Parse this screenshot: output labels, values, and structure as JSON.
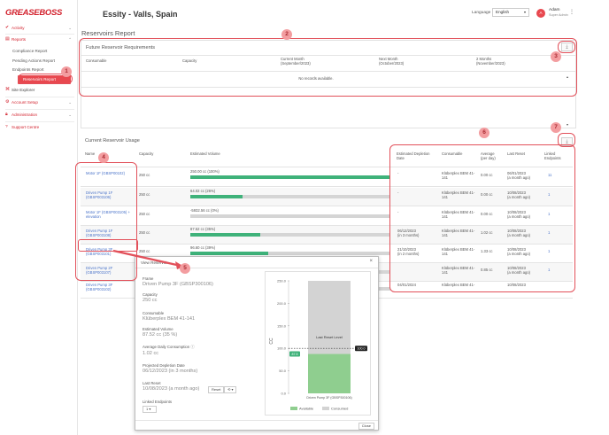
{
  "brand": {
    "logo_text": "GREASEBOSS"
  },
  "sidebar": {
    "activity": "Activity",
    "reports": "Reports",
    "compliance_report": "Compliance Report",
    "pending_actions_report": "Pending Actions Report",
    "endpoints_report": "Endpoints Report",
    "reservoirs_report": "Reservoirs Report",
    "site_explorer": "Site Explorer",
    "account_setup": "Account Setup",
    "administration": "Administration",
    "support_centre": "Support Centre"
  },
  "header": {
    "company": "Essity - Valls, Spain",
    "language_label": "Language",
    "language_value": "English",
    "avatar_initial": "A",
    "user_name": "Adam",
    "user_role": "Super Admin"
  },
  "page_title": "Reservoirs Report",
  "future": {
    "title": "Future Reservoir Requirements",
    "columns": [
      "Consumable",
      "Capacity",
      "Current Month",
      "Next Month",
      "2 Months"
    ],
    "subcolumns": [
      "(September/2023)",
      "(October/2023)",
      "(November/2023)"
    ],
    "empty": "No records available."
  },
  "current": {
    "title": "Current Reservoir Usage",
    "columns": [
      "Name",
      "Capacity",
      "Estimated Volume",
      "Estimated Depletion Date",
      "Consumable",
      "Average (per day)",
      "Last Reset",
      "Linked Endpoints"
    ],
    "rows": [
      {
        "name": "Motor 1F (GBSP00102)",
        "capacity": "250 cc",
        "volume": "250.00 cc (100%)",
        "fill": 1.0,
        "depletion": "-",
        "consumable": "Klüberplex BEM 41-141",
        "avg": "0.00 cc",
        "reset": "06/01/2023",
        "reset_ago": "(a month ago)",
        "endpoints": "11"
      },
      {
        "name": "Driven Pump 1F (GBSP003106)",
        "capacity": "250 cc",
        "volume": "64.02 cc (26%)",
        "fill": 0.26,
        "depletion": "-",
        "consumable": "Klüberplex BEM 41-141",
        "avg": "0.00 cc",
        "reset": "10/08/2023",
        "reset_ago": "(a month ago)",
        "endpoints": "1"
      },
      {
        "name": "Motor 1F (GBSP003105) + elevation",
        "capacity": "250 cc",
        "volume": "-5932.56 cc (0%)",
        "fill": 0.0,
        "depletion": "-",
        "consumable": "Klüberplex BEM 41-141",
        "avg": "0.00 cc",
        "reset": "10/08/2023",
        "reset_ago": "(a month ago)",
        "endpoints": "1"
      },
      {
        "name": "Driven Pump 1F (GBSP003108)",
        "capacity": "250 cc",
        "volume": "87.52 cc (35%)",
        "fill": 0.35,
        "depletion": "06/12/2023",
        "depletion_rel": "(in 3 months)",
        "consumable": "Klüberplex BEM 41-141",
        "avg": "1.02 cc",
        "reset": "10/08/2023",
        "reset_ago": "(a month ago)",
        "endpoints": "1"
      },
      {
        "name": "Driven Pump 3F (GBSP003101)",
        "capacity": "250 cc",
        "volume": "96.60 cc (39%)",
        "fill": 0.39,
        "depletion": "21/10/2023",
        "depletion_rel": "(in 2 months)",
        "consumable": "Klüberplex BEM 41-141",
        "avg": "1.33 cc",
        "reset": "10/08/2023",
        "reset_ago": "(a month ago)",
        "endpoints": "1"
      },
      {
        "name": "Driven Pump 2F (GBSP003107)",
        "capacity": "250 cc",
        "volume": "",
        "fill": 0.0,
        "depletion": "",
        "consumable": "Klüberplex BEM 41-141",
        "avg": "0.85 cc",
        "reset": "10/08/2023",
        "reset_ago": "(a month ago)",
        "endpoints": "1"
      },
      {
        "name": "Driven Pump 3F (GBSP003102)",
        "capacity": "250 cc",
        "volume": "",
        "fill": 0.0,
        "depletion": "04/01/2024",
        "consumable": "Klüberplex BEM 41-",
        "avg": "",
        "reset": "10/08/2023",
        "reset_ago": "",
        "endpoints": ""
      }
    ]
  },
  "modal": {
    "title": "View Reservoir",
    "frame_label": "Frame",
    "frame_value": "Driven Pump 3F (GBSP300106)",
    "capacity_label": "Capacity",
    "capacity_value": "250 cc",
    "consumable_label": "Consumable",
    "consumable_value": "Klüberplex BEM 41-141",
    "volume_label": "Estimated Volume",
    "volume_value": "87.52 cc (35 %)",
    "avg_label": "Average Daily Consumption",
    "avg_value": "1.02 cc",
    "depletion_label": "Projected Depletion Date",
    "depletion_value": "06/12/2023 (in 3 months)",
    "reset_label": "Last Reset",
    "reset_value": "10/08/2023 (a month ago)",
    "reset_button": "Reset",
    "linked_label": "Linked Endpoints",
    "linked_value": "1",
    "close_button": "Close"
  },
  "markers": [
    "1",
    "2",
    "3",
    "4",
    "5",
    "6",
    "7"
  ],
  "chart_data": {
    "type": "bar",
    "categories": [
      "Driven Pump 3F (GBSP300106)"
    ],
    "series": [
      {
        "name": "Available",
        "values": [
          87.52
        ]
      },
      {
        "name": "Consumed",
        "values": [
          162.48
        ]
      }
    ],
    "ylabel": "CC",
    "ylim": [
      0,
      250
    ],
    "yticks": [
      "0.0",
      "50.0",
      "100.0",
      "150.0",
      "200.0",
      "250.0"
    ],
    "reference_line": {
      "label": "Last Reset Level",
      "value": 100,
      "badge": "100.0"
    },
    "current_badge": "87.5",
    "legend": [
      "Available",
      "Consumed"
    ],
    "colors": {
      "available": "#8fce8f",
      "consumed": "#d3d3d3"
    }
  }
}
